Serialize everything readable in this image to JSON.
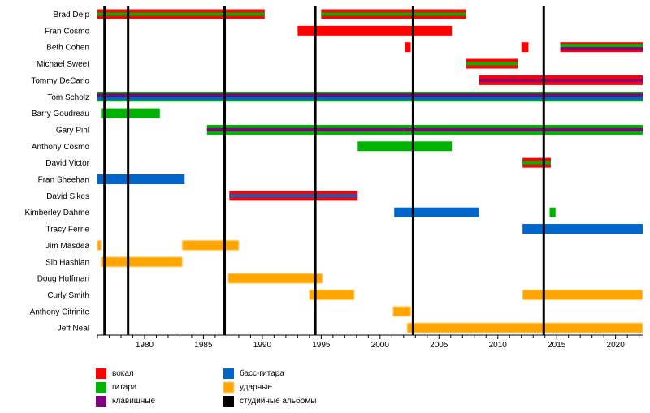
{
  "chart_data": {
    "type": "timeline",
    "xlim": [
      1976,
      2022.3
    ],
    "ticks": [
      1980,
      1985,
      1990,
      1995,
      2000,
      2005,
      2010,
      2015,
      2020
    ],
    "grid": false,
    "album_years": [
      1976.6,
      1978.6,
      1986.8,
      1994.5,
      2002.8,
      2013.9
    ],
    "colors": {
      "vocals": "#ff0000",
      "guitar": "#00b300",
      "keyboards": "#800080",
      "bass": "#0066cc",
      "drums": "#ffa500",
      "albums": "#000000"
    },
    "members": [
      {
        "name": "Brad Delp",
        "spans": [
          {
            "start": 1976.0,
            "end": 1990.2,
            "roles": [
              "vocals",
              "guitar"
            ]
          },
          {
            "start": 1995.0,
            "end": 2007.3,
            "roles": [
              "vocals",
              "guitar"
            ]
          }
        ]
      },
      {
        "name": "Fran Cosmo",
        "spans": [
          {
            "start": 1993.0,
            "end": 2006.1,
            "roles": [
              "vocals"
            ]
          }
        ]
      },
      {
        "name": "Beth Cohen",
        "spans": [
          {
            "start": 2002.1,
            "end": 2002.6,
            "roles": [
              "vocals"
            ]
          },
          {
            "start": 2012.0,
            "end": 2012.6,
            "roles": [
              "vocals"
            ]
          },
          {
            "start": 2015.3,
            "end": 2022.3,
            "roles": [
              "vocals",
              "guitar",
              "keyboards"
            ]
          }
        ]
      },
      {
        "name": "Michael Sweet",
        "spans": [
          {
            "start": 2007.3,
            "end": 2011.7,
            "roles": [
              "vocals",
              "guitar"
            ]
          }
        ]
      },
      {
        "name": "Tommy DeCarlo",
        "spans": [
          {
            "start": 2008.4,
            "end": 2022.3,
            "roles": [
              "vocals",
              "keyboards"
            ]
          }
        ]
      },
      {
        "name": "Tom Scholz",
        "spans": [
          {
            "start": 1976.0,
            "end": 2022.3,
            "roles": [
              "guitar",
              "keyboards",
              "bass"
            ]
          }
        ]
      },
      {
        "name": "Barry Goudreau",
        "spans": [
          {
            "start": 1976.3,
            "end": 1981.3,
            "roles": [
              "guitar"
            ]
          }
        ]
      },
      {
        "name": "Gary Pihl",
        "spans": [
          {
            "start": 1985.3,
            "end": 2022.3,
            "roles": [
              "guitar",
              "keyboards"
            ]
          }
        ]
      },
      {
        "name": "Anthony Cosmo",
        "spans": [
          {
            "start": 1998.1,
            "end": 2006.1,
            "roles": [
              "guitar"
            ]
          }
        ]
      },
      {
        "name": "David Victor",
        "spans": [
          {
            "start": 2012.1,
            "end": 2014.5,
            "roles": [
              "vocals",
              "guitar"
            ]
          }
        ]
      },
      {
        "name": "Fran Sheehan",
        "spans": [
          {
            "start": 1976.0,
            "end": 1983.4,
            "roles": [
              "bass"
            ]
          }
        ]
      },
      {
        "name": "David Sikes",
        "spans": [
          {
            "start": 1987.2,
            "end": 1998.1,
            "roles": [
              "vocals",
              "bass"
            ]
          }
        ]
      },
      {
        "name": "Kimberley Dahme",
        "spans": [
          {
            "start": 2001.2,
            "end": 2008.4,
            "roles": [
              "bass"
            ]
          },
          {
            "start": 2014.4,
            "end": 2014.9,
            "roles": [
              "guitar"
            ]
          }
        ]
      },
      {
        "name": "Tracy Ferrie",
        "spans": [
          {
            "start": 2012.1,
            "end": 2022.3,
            "roles": [
              "bass"
            ]
          }
        ]
      },
      {
        "name": "Jim Masdea",
        "spans": [
          {
            "start": 1976.0,
            "end": 1976.3,
            "roles": [
              "drums"
            ]
          },
          {
            "start": 1983.2,
            "end": 1988.0,
            "roles": [
              "drums"
            ]
          }
        ]
      },
      {
        "name": "Sib Hashian",
        "spans": [
          {
            "start": 1976.3,
            "end": 1983.2,
            "roles": [
              "drums"
            ]
          }
        ]
      },
      {
        "name": "Doug Huffman",
        "spans": [
          {
            "start": 1987.1,
            "end": 1995.1,
            "roles": [
              "drums"
            ]
          }
        ]
      },
      {
        "name": "Curly Smith",
        "spans": [
          {
            "start": 1994.0,
            "end": 1997.8,
            "roles": [
              "drums"
            ]
          },
          {
            "start": 2012.1,
            "end": 2022.3,
            "roles": [
              "drums"
            ]
          }
        ]
      },
      {
        "name": "Anthony Citrinite",
        "spans": [
          {
            "start": 2001.1,
            "end": 2002.6,
            "roles": [
              "drums"
            ]
          }
        ]
      },
      {
        "name": "Jeff Neal",
        "spans": [
          {
            "start": 2002.3,
            "end": 2022.3,
            "roles": [
              "drums"
            ]
          }
        ]
      }
    ],
    "legend": [
      {
        "key": "vocals",
        "label": "вокал"
      },
      {
        "key": "guitar",
        "label": "гитара"
      },
      {
        "key": "keyboards",
        "label": "клавишные"
      },
      {
        "key": "bass",
        "label": "басс-гитара"
      },
      {
        "key": "drums",
        "label": "ударные"
      },
      {
        "key": "albums",
        "label": "студийные альбомы"
      }
    ]
  }
}
